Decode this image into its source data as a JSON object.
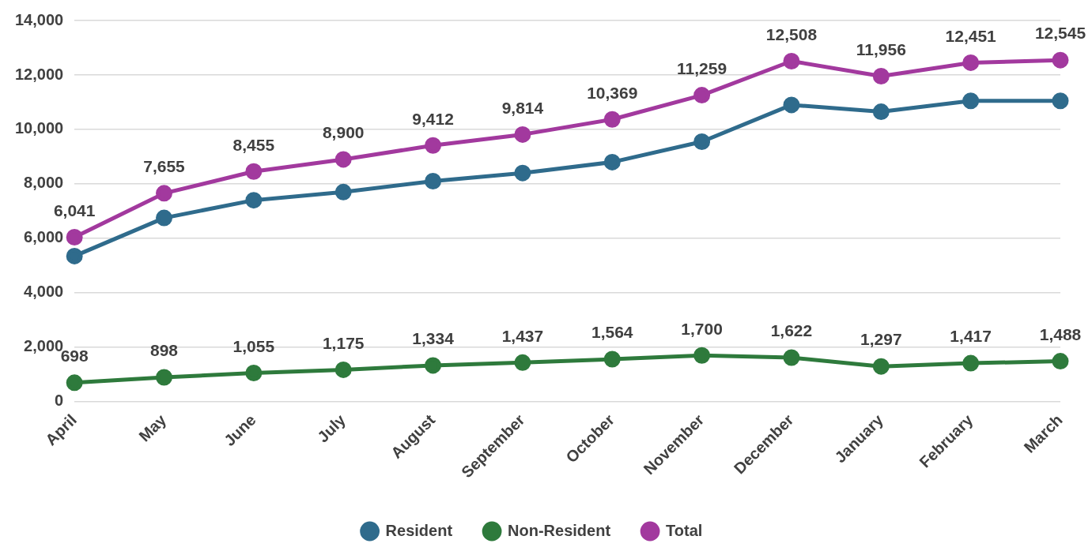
{
  "chart_data": {
    "type": "line",
    "categories": [
      "April",
      "May",
      "June",
      "July",
      "August",
      "September",
      "October",
      "November",
      "December",
      "January",
      "February",
      "March"
    ],
    "series": [
      {
        "name": "Resident",
        "color": "#2f6b8c",
        "values": [
          5350,
          6750,
          7400,
          7700,
          8100,
          8400,
          8800,
          9550,
          10900,
          10650,
          11050,
          11050
        ]
      },
      {
        "name": "Non-Resident",
        "color": "#2e7a3c",
        "values": [
          698,
          898,
          1055,
          1175,
          1334,
          1437,
          1564,
          1700,
          1622,
          1297,
          1417,
          1488
        ],
        "value_labels": [
          "698",
          "898",
          "1,055",
          "1,175",
          "1,334",
          "1,437",
          "1,564",
          "1,700",
          "1,622",
          "1,297",
          "1,417",
          "1,488"
        ]
      },
      {
        "name": "Total",
        "color": "#a2399e",
        "values": [
          6041,
          7655,
          8455,
          8900,
          9412,
          9814,
          10369,
          11259,
          12508,
          11956,
          12451,
          12545
        ],
        "value_labels": [
          "6,041",
          "7,655",
          "8,455",
          "8,900",
          "9,412",
          "9,814",
          "10,369",
          "11,259",
          "12,508",
          "11,956",
          "12,451",
          "12,545"
        ]
      }
    ],
    "ylim": [
      0,
      14000
    ],
    "yticks": [
      0,
      {
        "value": 2000,
        "label": "2,000"
      },
      {
        "value": 4000,
        "label": "4,000"
      },
      {
        "value": 6000,
        "label": "6,000"
      },
      {
        "value": 8000,
        "label": "8,000"
      },
      {
        "value": 10000,
        "label": "10,000"
      },
      {
        "value": 12000,
        "label": "12,000"
      },
      {
        "value": 14000,
        "label": "14,000"
      }
    ],
    "grid": "y",
    "legend": "bottom",
    "marker": "circle",
    "line_style": "solid"
  }
}
